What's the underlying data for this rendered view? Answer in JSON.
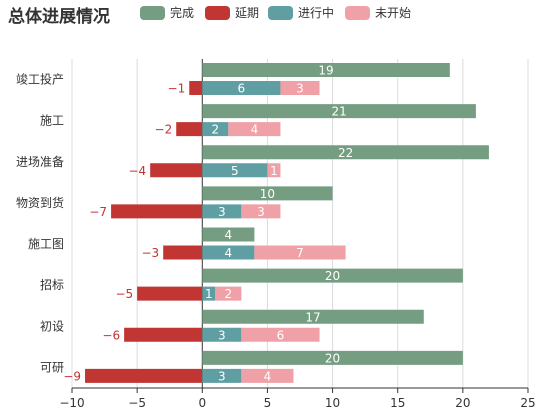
{
  "chart_title": "总体进展情况",
  "colors": {
    "complete": "#759d81",
    "delayed": "#c13533",
    "in_progress": "#5f9ea3",
    "not_started": "#f0a1a8",
    "grid": "#dcdcdc",
    "axis": "#333333",
    "delayed_label": "#c13533"
  },
  "chart_data": {
    "type": "bar",
    "orientation": "horizontal",
    "title": "总体进展情况",
    "xlabel": "",
    "ylabel": "",
    "xlim": [
      -10,
      25
    ],
    "x_ticks": [
      -10,
      -5,
      0,
      5,
      10,
      15,
      20,
      25
    ],
    "x_tick_labels": [
      "−10",
      "−5",
      "0",
      "5",
      "10",
      "15",
      "20",
      "25"
    ],
    "grid": "vertical",
    "legend_position": "top",
    "categories": [
      "竣工投产",
      "施工",
      "进场准备",
      "物资到货",
      "施工图",
      "招标",
      "初设",
      "可研"
    ],
    "series": [
      {
        "name": "完成",
        "key": "complete",
        "stack": "upper",
        "values": [
          19,
          21,
          22,
          10,
          4,
          20,
          17,
          20
        ]
      },
      {
        "name": "延期",
        "key": "delayed",
        "stack": "lower",
        "values": [
          -1,
          -2,
          -4,
          -7,
          -3,
          -5,
          -6,
          -9
        ]
      },
      {
        "name": "进行中",
        "key": "in_progress",
        "stack": "lower",
        "values": [
          6,
          2,
          5,
          3,
          4,
          1,
          3,
          3
        ]
      },
      {
        "name": "未开始",
        "key": "not_started",
        "stack": "lower",
        "values": [
          3,
          4,
          1,
          3,
          7,
          2,
          6,
          4
        ]
      }
    ]
  }
}
